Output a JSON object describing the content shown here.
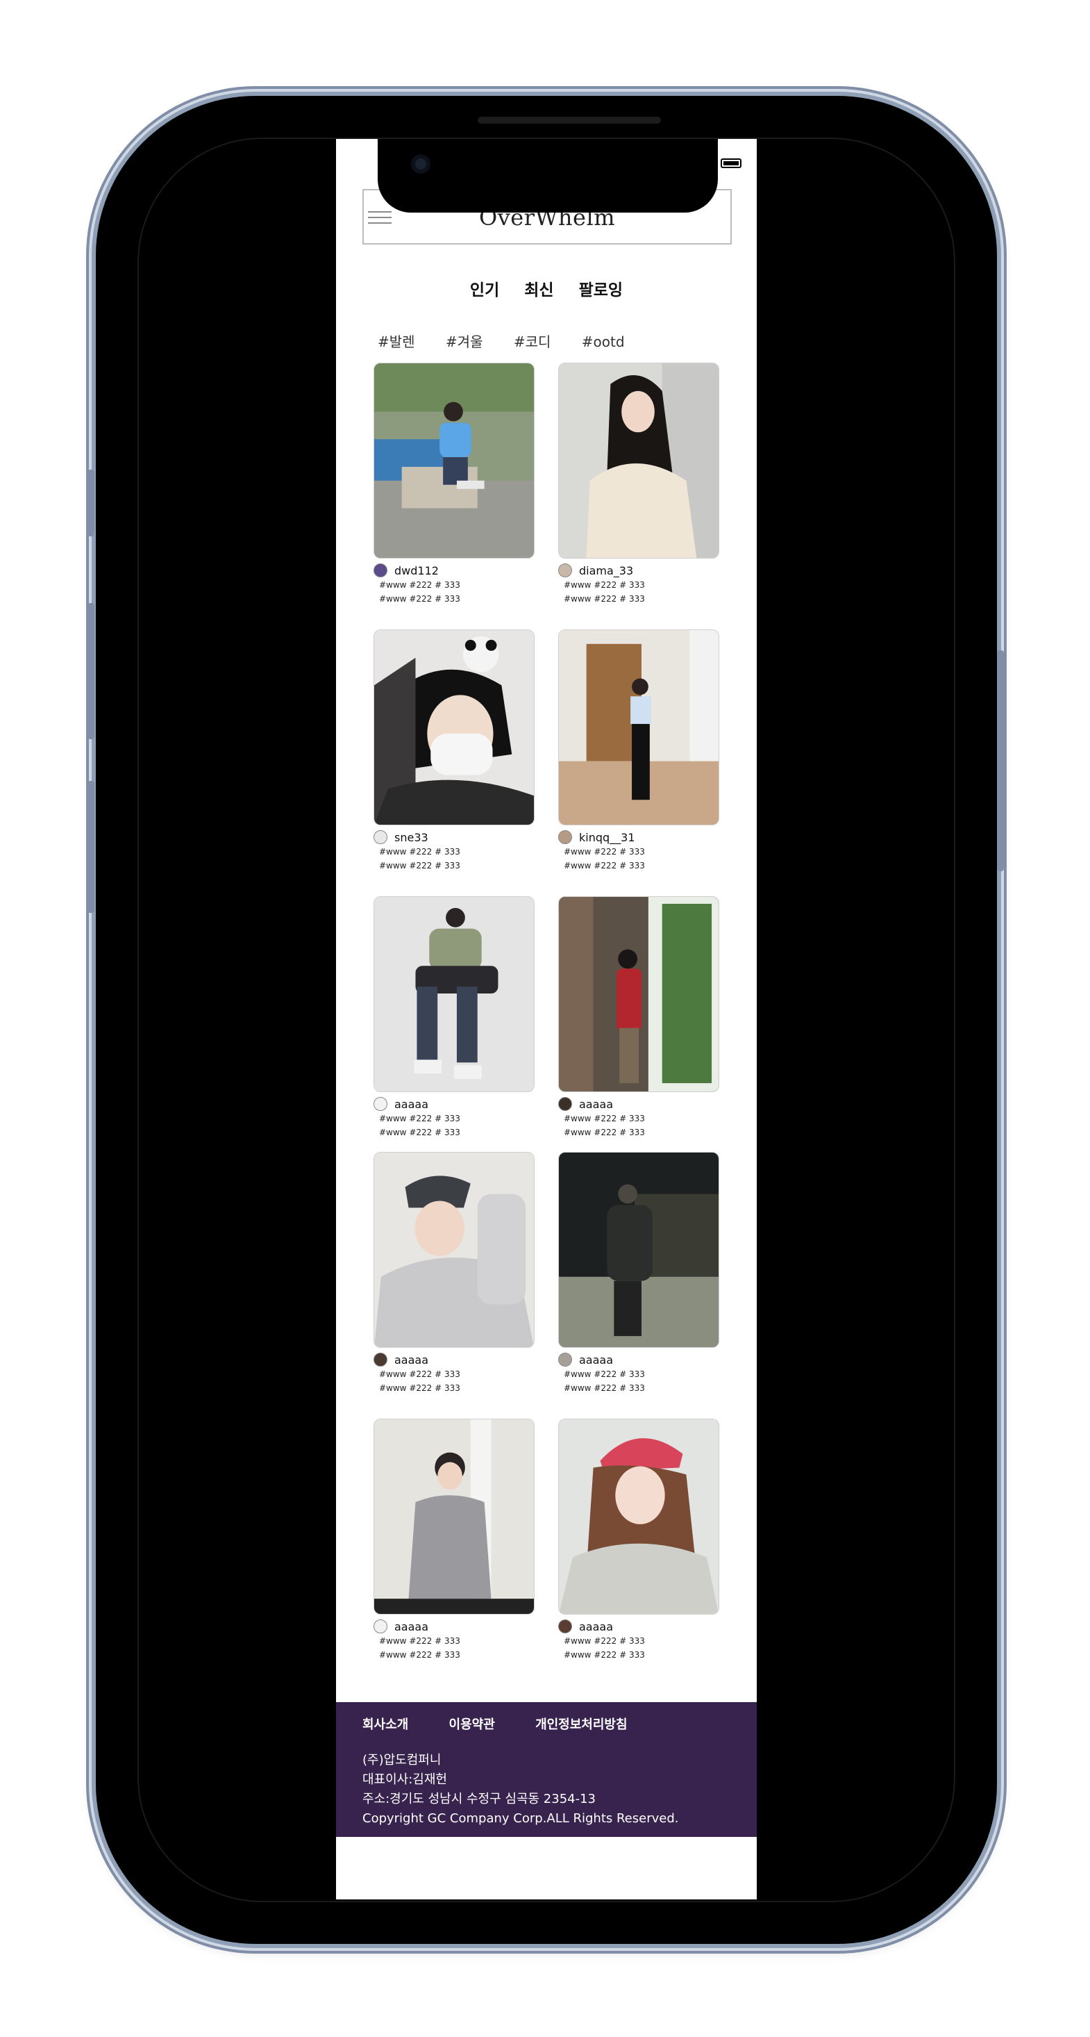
{
  "app": {
    "title": "OverWhelm"
  },
  "sort_tabs": [
    "인기",
    "최신",
    "팔로잉"
  ],
  "hashtags": [
    "#발렌",
    "#겨울",
    "#코디",
    "#ootd"
  ],
  "posts": [
    {
      "username": "dwd112",
      "tags1": "#www #222 # 333",
      "tags2": "#www #222 # 333"
    },
    {
      "username": "diama_33",
      "tags1": "#www #222 # 333",
      "tags2": "#www #222 # 333"
    },
    {
      "username": "sne33",
      "tags1": "#www #222 # 333",
      "tags2": "#www #222 # 333"
    },
    {
      "username": "kinqq__31",
      "tags1": "#www #222 # 333",
      "tags2": "#www #222 # 333"
    },
    {
      "username": "aaaaa",
      "tags1": "#www #222 # 333",
      "tags2": "#www #222 # 333"
    },
    {
      "username": "aaaaa",
      "tags1": "#www #222 # 333",
      "tags2": "#www #222 # 333"
    },
    {
      "username": "aaaaa",
      "tags1": "#www #222 # 333",
      "tags2": "#www #222 # 333"
    },
    {
      "username": "aaaaa",
      "tags1": "#www #222 # 333",
      "tags2": "#www #222 # 333"
    },
    {
      "username": "aaaaa",
      "tags1": "#www #222 # 333",
      "tags2": "#www #222 # 333"
    },
    {
      "username": "aaaaa",
      "tags1": "#www #222 # 333",
      "tags2": "#www #222 # 333"
    }
  ],
  "footer": {
    "links": [
      "회사소개",
      "이용약관",
      "개인정보처리방침"
    ],
    "company": "(주)압도컴퍼니",
    "ceo": "대표이사:김재헌",
    "address": "주소:경기도 성남시 수정구 심곡동 2354-13",
    "copyright": "Copyright GC Company Corp.ALL Rights Reserved."
  },
  "colors": {
    "footer_bg": "#38234f",
    "phone_frame": "#8f9fb6"
  }
}
